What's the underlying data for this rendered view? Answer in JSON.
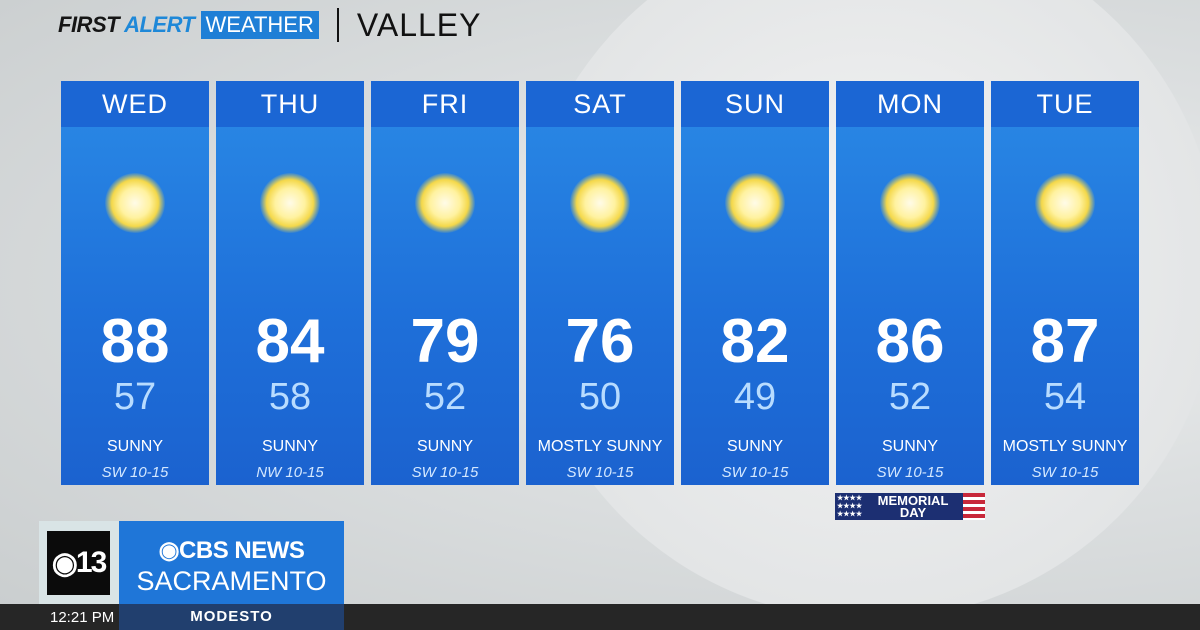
{
  "header": {
    "brand_part1": "FIRST",
    "brand_part2": "ALERT",
    "brand_part3": "WEATHER",
    "region": "VALLEY"
  },
  "forecast": [
    {
      "day": "WED",
      "high": "88",
      "low": "57",
      "condition": "SUNNY",
      "wind": "SW 10-15",
      "icon": "sun-icon"
    },
    {
      "day": "THU",
      "high": "84",
      "low": "58",
      "condition": "SUNNY",
      "wind": "NW 10-15",
      "icon": "sun-icon"
    },
    {
      "day": "FRI",
      "high": "79",
      "low": "52",
      "condition": "SUNNY",
      "wind": "SW 10-15",
      "icon": "sun-icon"
    },
    {
      "day": "SAT",
      "high": "76",
      "low": "50",
      "condition": "MOSTLY SUNNY",
      "wind": "SW 10-15",
      "icon": "sun-icon"
    },
    {
      "day": "SUN",
      "high": "82",
      "low": "49",
      "condition": "SUNNY",
      "wind": "SW 10-15",
      "icon": "sun-icon"
    },
    {
      "day": "MON",
      "high": "86",
      "low": "52",
      "condition": "SUNNY",
      "wind": "SW 10-15",
      "icon": "sun-icon"
    },
    {
      "day": "TUE",
      "high": "87",
      "low": "54",
      "condition": "MOSTLY SUNNY",
      "wind": "SW 10-15",
      "icon": "sun-icon"
    }
  ],
  "holiday": {
    "line1": "MEMORIAL",
    "line2": "DAY"
  },
  "station": {
    "channel": "13",
    "network": "CBS NEWS",
    "city": "SACRAMENTO"
  },
  "ticker": {
    "time": "12:21 PM",
    "location": "MODESTO"
  },
  "colors": {
    "card": "#1e6fd9",
    "header_blue": "#1b66d4",
    "low_temp": "#b8dcff"
  }
}
